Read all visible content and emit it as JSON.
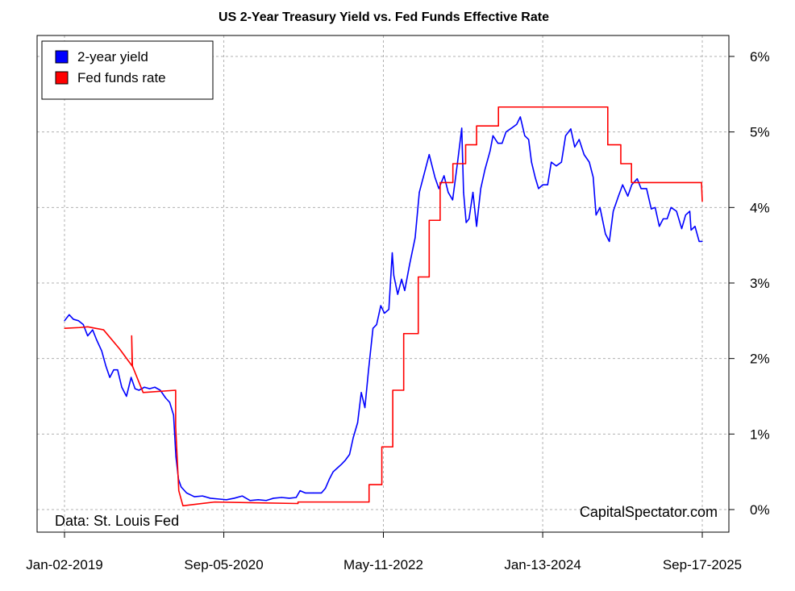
{
  "chart_data": {
    "type": "line",
    "title": "US 2-Year Treasury Yield vs. Fed Funds Effective Rate",
    "xlabel": "",
    "ylabel": "",
    "x_ticks": [
      "Jan-02-2019",
      "Sep-05-2020",
      "May-11-2022",
      "Jan-13-2024",
      "Sep-17-2025"
    ],
    "y_ticks": [
      "0%",
      "1%",
      "2%",
      "3%",
      "4%",
      "5%",
      "6%"
    ],
    "y_tick_values": [
      0,
      1,
      2,
      3,
      4,
      5,
      6
    ],
    "x_range": [
      "2019-01-02",
      "2025-09-17"
    ],
    "ylim": [
      -0.3,
      6.3
    ],
    "grid": true,
    "legend_position": "top-left",
    "colors": {
      "yield": "#0000ff",
      "fed": "#ff0000",
      "grid": "#b0b0b0",
      "axis": "#000000"
    },
    "series": [
      {
        "name": "2-year yield",
        "color": "#0000ff",
        "points": [
          [
            "2019-01-02",
            2.5
          ],
          [
            "2019-01-20",
            2.58
          ],
          [
            "2019-02-05",
            2.52
          ],
          [
            "2019-02-25",
            2.5
          ],
          [
            "2019-03-15",
            2.45
          ],
          [
            "2019-04-01",
            2.3
          ],
          [
            "2019-04-20",
            2.38
          ],
          [
            "2019-05-05",
            2.25
          ],
          [
            "2019-05-25",
            2.1
          ],
          [
            "2019-06-10",
            1.9
          ],
          [
            "2019-06-25",
            1.75
          ],
          [
            "2019-07-10",
            1.85
          ],
          [
            "2019-07-25",
            1.85
          ],
          [
            "2019-08-10",
            1.62
          ],
          [
            "2019-08-28",
            1.5
          ],
          [
            "2019-09-15",
            1.75
          ],
          [
            "2019-09-30",
            1.6
          ],
          [
            "2019-10-15",
            1.58
          ],
          [
            "2019-11-05",
            1.62
          ],
          [
            "2019-11-25",
            1.6
          ],
          [
            "2019-12-15",
            1.62
          ],
          [
            "2020-01-05",
            1.58
          ],
          [
            "2020-01-25",
            1.48
          ],
          [
            "2020-02-10",
            1.42
          ],
          [
            "2020-02-25",
            1.25
          ],
          [
            "2020-03-05",
            0.7
          ],
          [
            "2020-03-15",
            0.4
          ],
          [
            "2020-03-25",
            0.3
          ],
          [
            "2020-04-15",
            0.22
          ],
          [
            "2020-05-15",
            0.17
          ],
          [
            "2020-06-15",
            0.18
          ],
          [
            "2020-07-15",
            0.15
          ],
          [
            "2020-08-15",
            0.14
          ],
          [
            "2020-09-15",
            0.13
          ],
          [
            "2020-10-15",
            0.15
          ],
          [
            "2020-11-15",
            0.18
          ],
          [
            "2020-12-15",
            0.12
          ],
          [
            "2021-01-15",
            0.13
          ],
          [
            "2021-02-15",
            0.12
          ],
          [
            "2021-03-15",
            0.15
          ],
          [
            "2021-04-15",
            0.16
          ],
          [
            "2021-05-15",
            0.15
          ],
          [
            "2021-06-10",
            0.16
          ],
          [
            "2021-06-25",
            0.25
          ],
          [
            "2021-07-15",
            0.22
          ],
          [
            "2021-08-15",
            0.22
          ],
          [
            "2021-09-15",
            0.22
          ],
          [
            "2021-09-30",
            0.28
          ],
          [
            "2021-10-15",
            0.4
          ],
          [
            "2021-10-30",
            0.5
          ],
          [
            "2021-11-15",
            0.55
          ],
          [
            "2021-12-01",
            0.6
          ],
          [
            "2021-12-15",
            0.65
          ],
          [
            "2022-01-01",
            0.73
          ],
          [
            "2022-01-15",
            0.95
          ],
          [
            "2022-02-01",
            1.15
          ],
          [
            "2022-02-15",
            1.55
          ],
          [
            "2022-03-01",
            1.35
          ],
          [
            "2022-03-15",
            1.85
          ],
          [
            "2022-04-01",
            2.4
          ],
          [
            "2022-04-15",
            2.45
          ],
          [
            "2022-05-01",
            2.7
          ],
          [
            "2022-05-15",
            2.6
          ],
          [
            "2022-06-01",
            2.65
          ],
          [
            "2022-06-14",
            3.4
          ],
          [
            "2022-06-20",
            3.1
          ],
          [
            "2022-07-05",
            2.85
          ],
          [
            "2022-07-20",
            3.05
          ],
          [
            "2022-08-01",
            2.9
          ],
          [
            "2022-08-20",
            3.25
          ],
          [
            "2022-09-10",
            3.6
          ],
          [
            "2022-09-26",
            4.2
          ],
          [
            "2022-10-15",
            4.45
          ],
          [
            "2022-11-03",
            4.7
          ],
          [
            "2022-11-25",
            4.4
          ],
          [
            "2022-12-10",
            4.25
          ],
          [
            "2022-12-30",
            4.42
          ],
          [
            "2023-01-15",
            4.2
          ],
          [
            "2023-02-01",
            4.1
          ],
          [
            "2023-02-20",
            4.6
          ],
          [
            "2023-03-08",
            5.05
          ],
          [
            "2023-03-15",
            4.2
          ],
          [
            "2023-03-25",
            3.8
          ],
          [
            "2023-04-05",
            3.85
          ],
          [
            "2023-04-20",
            4.2
          ],
          [
            "2023-05-04",
            3.75
          ],
          [
            "2023-05-20",
            4.25
          ],
          [
            "2023-06-05",
            4.5
          ],
          [
            "2023-06-25",
            4.75
          ],
          [
            "2023-07-06",
            4.95
          ],
          [
            "2023-07-25",
            4.85
          ],
          [
            "2023-08-10",
            4.85
          ],
          [
            "2023-08-25",
            5.0
          ],
          [
            "2023-09-15",
            5.05
          ],
          [
            "2023-10-05",
            5.1
          ],
          [
            "2023-10-19",
            5.2
          ],
          [
            "2023-11-05",
            4.95
          ],
          [
            "2023-11-20",
            4.9
          ],
          [
            "2023-12-01",
            4.6
          ],
          [
            "2023-12-15",
            4.4
          ],
          [
            "2023-12-28",
            4.25
          ],
          [
            "2024-01-13",
            4.3
          ],
          [
            "2024-02-01",
            4.3
          ],
          [
            "2024-02-15",
            4.6
          ],
          [
            "2024-03-05",
            4.55
          ],
          [
            "2024-03-25",
            4.6
          ],
          [
            "2024-04-10",
            4.95
          ],
          [
            "2024-04-30",
            5.04
          ],
          [
            "2024-05-15",
            4.8
          ],
          [
            "2024-06-01",
            4.9
          ],
          [
            "2024-06-20",
            4.7
          ],
          [
            "2024-07-10",
            4.6
          ],
          [
            "2024-07-25",
            4.4
          ],
          [
            "2024-08-05",
            3.9
          ],
          [
            "2024-08-20",
            4.0
          ],
          [
            "2024-09-10",
            3.65
          ],
          [
            "2024-09-25",
            3.55
          ],
          [
            "2024-10-10",
            3.95
          ],
          [
            "2024-10-30",
            4.15
          ],
          [
            "2024-11-15",
            4.3
          ],
          [
            "2024-12-05",
            4.15
          ],
          [
            "2024-12-20",
            4.3
          ],
          [
            "2025-01-10",
            4.38
          ],
          [
            "2025-01-25",
            4.25
          ],
          [
            "2025-02-15",
            4.25
          ],
          [
            "2025-03-05",
            3.98
          ],
          [
            "2025-03-20",
            4.0
          ],
          [
            "2025-04-05",
            3.75
          ],
          [
            "2025-04-20",
            3.85
          ],
          [
            "2025-05-05",
            3.85
          ],
          [
            "2025-05-20",
            4.0
          ],
          [
            "2025-06-10",
            3.95
          ],
          [
            "2025-06-30",
            3.72
          ],
          [
            "2025-07-15",
            3.9
          ],
          [
            "2025-07-31",
            3.95
          ],
          [
            "2025-08-05",
            3.7
          ],
          [
            "2025-08-20",
            3.75
          ],
          [
            "2025-09-05",
            3.55
          ],
          [
            "2025-09-17",
            3.55
          ]
        ]
      },
      {
        "name": "Fed funds rate",
        "color": "#ff0000",
        "points": [
          [
            "2019-01-02",
            2.4
          ],
          [
            "2019-03-01",
            2.41
          ],
          [
            "2019-04-01",
            2.42
          ],
          [
            "2019-05-01",
            2.4
          ],
          [
            "2019-06-01",
            2.38
          ],
          [
            "2019-08-01",
            2.13
          ],
          [
            "2019-09-19",
            1.9
          ],
          [
            "2019-09-17",
            2.3
          ],
          [
            "2019-09-20",
            1.9
          ],
          [
            "2019-10-31",
            1.55
          ],
          [
            "2020-03-04",
            1.58
          ],
          [
            "2020-03-04",
            1.1
          ],
          [
            "2020-03-16",
            0.25
          ],
          [
            "2020-04-01",
            0.05
          ],
          [
            "2020-08-01",
            0.1
          ],
          [
            "2021-01-01",
            0.09
          ],
          [
            "2021-06-17",
            0.08
          ],
          [
            "2021-06-17",
            0.1
          ],
          [
            "2022-03-17",
            0.1
          ],
          [
            "2022-03-17",
            0.33
          ],
          [
            "2022-05-05",
            0.33
          ],
          [
            "2022-05-05",
            0.83
          ],
          [
            "2022-06-16",
            0.83
          ],
          [
            "2022-06-16",
            1.58
          ],
          [
            "2022-07-28",
            1.58
          ],
          [
            "2022-07-28",
            2.33
          ],
          [
            "2022-09-22",
            2.33
          ],
          [
            "2022-09-22",
            3.08
          ],
          [
            "2022-11-03",
            3.08
          ],
          [
            "2022-11-03",
            3.83
          ],
          [
            "2022-12-15",
            3.83
          ],
          [
            "2022-12-15",
            4.33
          ],
          [
            "2023-02-02",
            4.33
          ],
          [
            "2023-02-02",
            4.58
          ],
          [
            "2023-03-23",
            4.58
          ],
          [
            "2023-03-23",
            4.83
          ],
          [
            "2023-05-04",
            4.83
          ],
          [
            "2023-05-04",
            5.08
          ],
          [
            "2023-07-27",
            5.08
          ],
          [
            "2023-07-27",
            5.33
          ],
          [
            "2024-09-19",
            5.33
          ],
          [
            "2024-09-19",
            4.83
          ],
          [
            "2024-11-08",
            4.83
          ],
          [
            "2024-11-08",
            4.58
          ],
          [
            "2024-12-19",
            4.58
          ],
          [
            "2024-12-19",
            4.33
          ],
          [
            "2025-09-14",
            4.33
          ],
          [
            "2025-09-17",
            4.08
          ]
        ]
      }
    ],
    "annotations": {
      "source": "Data: St. Louis Fed",
      "credit": "CapitalSpectator.com"
    }
  }
}
